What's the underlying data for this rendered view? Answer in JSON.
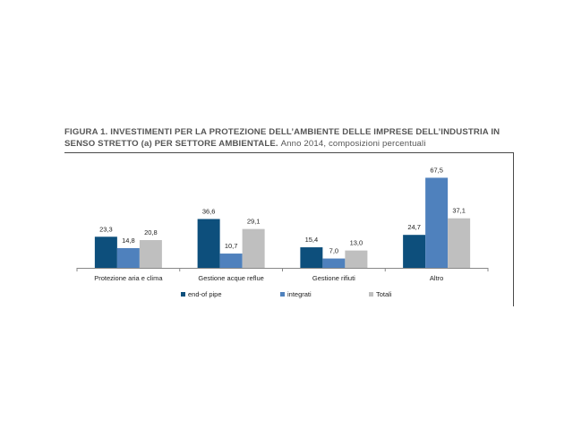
{
  "figure": {
    "title_bold": "FIGURA 1. INVESTIMENTI PER LA PROTEZIONE DELL’AMBIENTE DELLE IMPRESE DELL’INDUSTRIA IN SENSO STRETTO (a) PER SETTORE AMBIENTALE.",
    "title_normal": "Anno 2014, composizioni percentuali"
  },
  "chart_data": {
    "type": "bar",
    "categories": [
      "Protezione aria e clima",
      "Gestione acque reflue",
      "Gestione  rifiuti",
      "Altro"
    ],
    "series": [
      {
        "name": "end-of pipe",
        "values": [
          23.3,
          36.6,
          15.4,
          24.7
        ],
        "labels": [
          "23,3",
          "36,6",
          "15,4",
          "24,7"
        ],
        "color": "#0d4f7c"
      },
      {
        "name": "integrati",
        "values": [
          14.8,
          10.7,
          7.0,
          67.5
        ],
        "labels": [
          "14,8",
          "10,7",
          "7,0",
          "67,5"
        ],
        "color": "#4f81bd"
      },
      {
        "name": "Totali",
        "values": [
          20.8,
          29.1,
          13.0,
          37.1
        ],
        "labels": [
          "20,8",
          "29,1",
          "13,0",
          "37,1"
        ],
        "color": "#bfbfbf"
      }
    ],
    "ylim": [
      0,
      70
    ],
    "grid": false,
    "legend_position": "bottom"
  }
}
